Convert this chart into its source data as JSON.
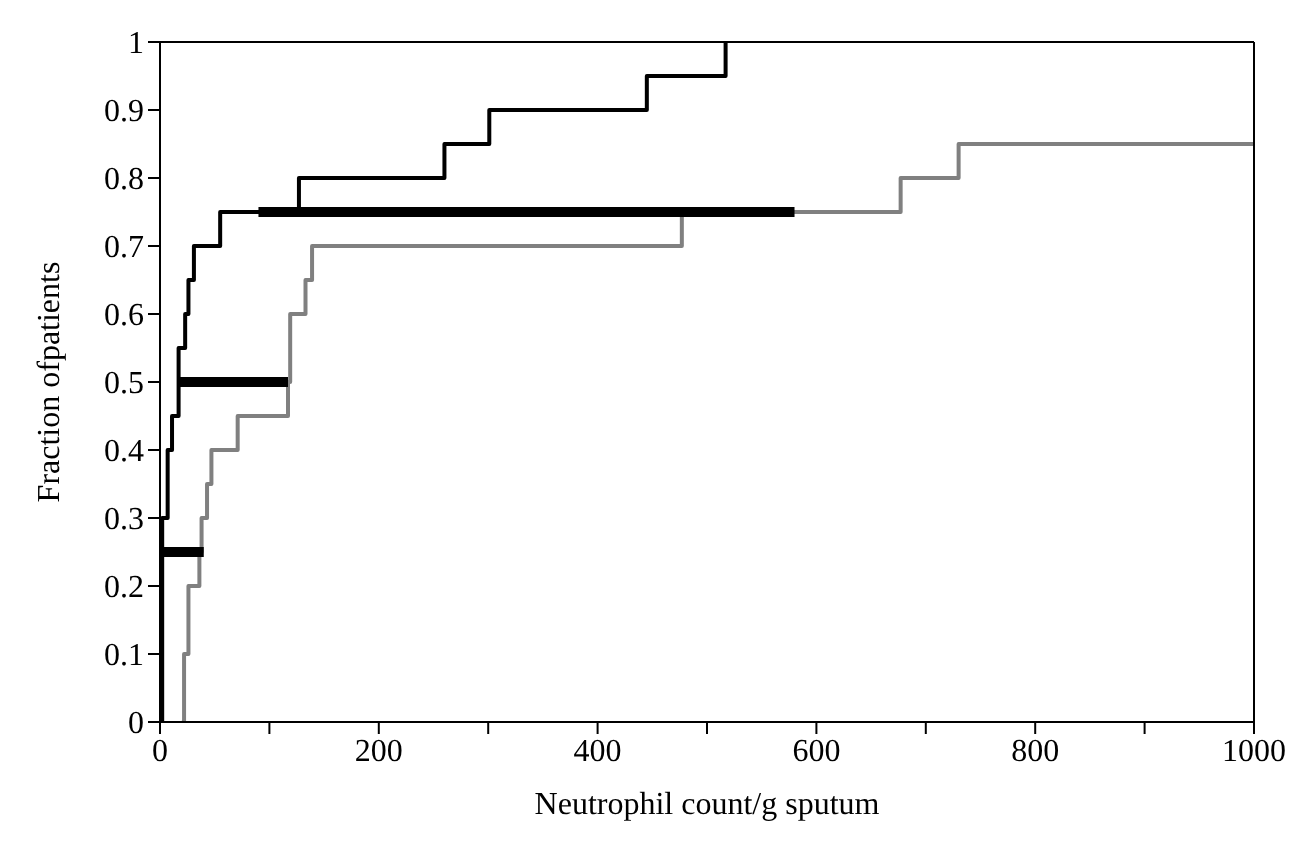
{
  "chart_data": {
    "type": "step",
    "xlabel": "Neutrophil count/g sputum",
    "ylabel": "Fraction ofpatients",
    "xlim": [
      0,
      1000
    ],
    "ylim": [
      0,
      1
    ],
    "xticks": [
      0,
      {
        "value": 100,
        "label": null
      },
      200,
      {
        "value": 300,
        "label": null
      },
      400,
      {
        "value": 500,
        "label": null
      },
      600,
      {
        "value": 700,
        "label": null
      },
      800,
      {
        "value": 900,
        "label": null
      },
      1000
    ],
    "yticks": [
      0,
      0.1,
      0.2,
      0.3,
      0.4,
      0.5,
      0.6,
      0.7,
      0.8,
      0.9,
      1
    ],
    "grid": false,
    "legend": false,
    "marker": "none",
    "series": [
      {
        "color": "#000000",
        "x": [
          2,
          2,
          7,
          11,
          17,
          23,
          26,
          31,
          55,
          127,
          260,
          301,
          445,
          517,
          517
        ],
        "values": [
          0,
          0.3,
          0.4,
          0.45,
          0.55,
          0.6,
          0.65,
          0.7,
          0.75,
          0.8,
          0.85,
          0.9,
          0.95,
          1,
          1
        ]
      },
      {
        "color": "#808080",
        "x": [
          20,
          22,
          26,
          36,
          38,
          43,
          47,
          71,
          117,
          119,
          133,
          139,
          477,
          677,
          730,
          1000
        ],
        "values": [
          0,
          0.1,
          0.2,
          0.25,
          0.3,
          0.35,
          0.4,
          0.45,
          0.5,
          0.6,
          0.65,
          0.7,
          0.75,
          0.8,
          0.85,
          0.85
        ]
      },
      {
        "type": "line",
        "color": "#000000",
        "x": [
          0,
          40
        ],
        "values": [
          0.25,
          0.25
        ]
      },
      {
        "type": "line",
        "color": "#000000",
        "x": [
          17,
          117
        ],
        "values": [
          0.5,
          0.5
        ]
      },
      {
        "type": "line",
        "color": "#000000",
        "x": [
          90,
          580
        ],
        "values": [
          0.75,
          0.75
        ]
      }
    ]
  }
}
